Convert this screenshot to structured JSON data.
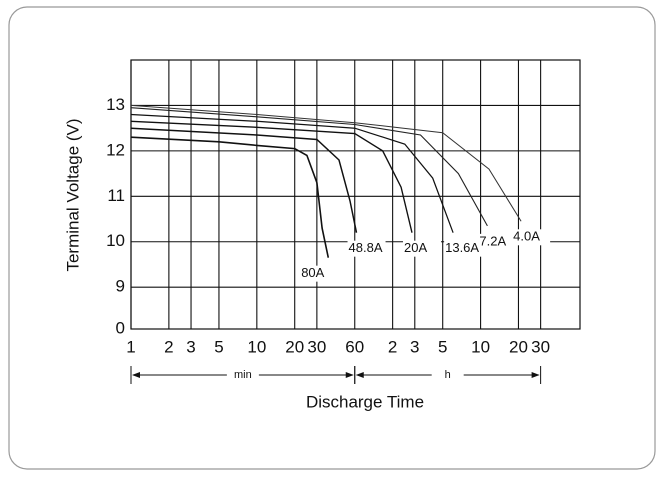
{
  "chart_data": {
    "type": "line",
    "x_label": "Discharge Time",
    "y_label": "Terminal Voltage (V)",
    "x_log": true,
    "y_axis_break": true,
    "grid": true,
    "xlim": [
      1,
      3700
    ],
    "ylim": [
      0,
      14
    ],
    "xticks": [
      1,
      2,
      3,
      5,
      10,
      20,
      30,
      60,
      {
        "value": 120,
        "label": "2"
      },
      {
        "value": 180,
        "label": "3"
      },
      {
        "value": 300,
        "label": "5"
      },
      {
        "value": 600,
        "label": "10"
      },
      {
        "value": 1200,
        "label": "20"
      },
      {
        "value": 1800,
        "label": "30"
      }
    ],
    "yticks": [
      0,
      9,
      10,
      11,
      12,
      13
    ],
    "x_units": [
      {
        "label": "min",
        "from": 1,
        "to": 60
      },
      {
        "label": "h",
        "from": 60,
        "to": 1800
      }
    ],
    "series": [
      {
        "name": "80A",
        "color": "#111111",
        "x": [
          1,
          5,
          10,
          20,
          25,
          30,
          33,
          37
        ],
        "values": [
          12.3,
          12.2,
          12.12,
          12.05,
          11.9,
          11.3,
          10.3,
          9.65
        ]
      },
      {
        "name": "48.8A",
        "color": "#111111",
        "x": [
          1,
          10,
          30,
          45,
          55,
          62
        ],
        "values": [
          12.5,
          12.35,
          12.25,
          11.8,
          10.9,
          10.2
        ]
      },
      {
        "name": "20A",
        "color": "#111111",
        "x": [
          1,
          10,
          60,
          100,
          140,
          171
        ],
        "values": [
          12.65,
          12.52,
          12.38,
          12.0,
          11.2,
          10.2
        ]
      },
      {
        "name": "13.6A",
        "color": "#111111",
        "x": [
          1,
          10,
          60,
          150,
          250,
          363
        ],
        "values": [
          12.8,
          12.65,
          12.5,
          12.15,
          11.4,
          10.2
        ]
      },
      {
        "name": "7.2A",
        "color": "#222222",
        "x": [
          1,
          10,
          60,
          200,
          400,
          680
        ],
        "values": [
          12.95,
          12.75,
          12.58,
          12.35,
          11.5,
          10.35
        ]
      },
      {
        "name": "4.0A",
        "color": "#333333",
        "x": [
          1,
          10,
          60,
          300,
          700,
          1260
        ],
        "values": [
          13.0,
          12.8,
          12.62,
          12.4,
          11.6,
          10.45
        ]
      }
    ]
  }
}
